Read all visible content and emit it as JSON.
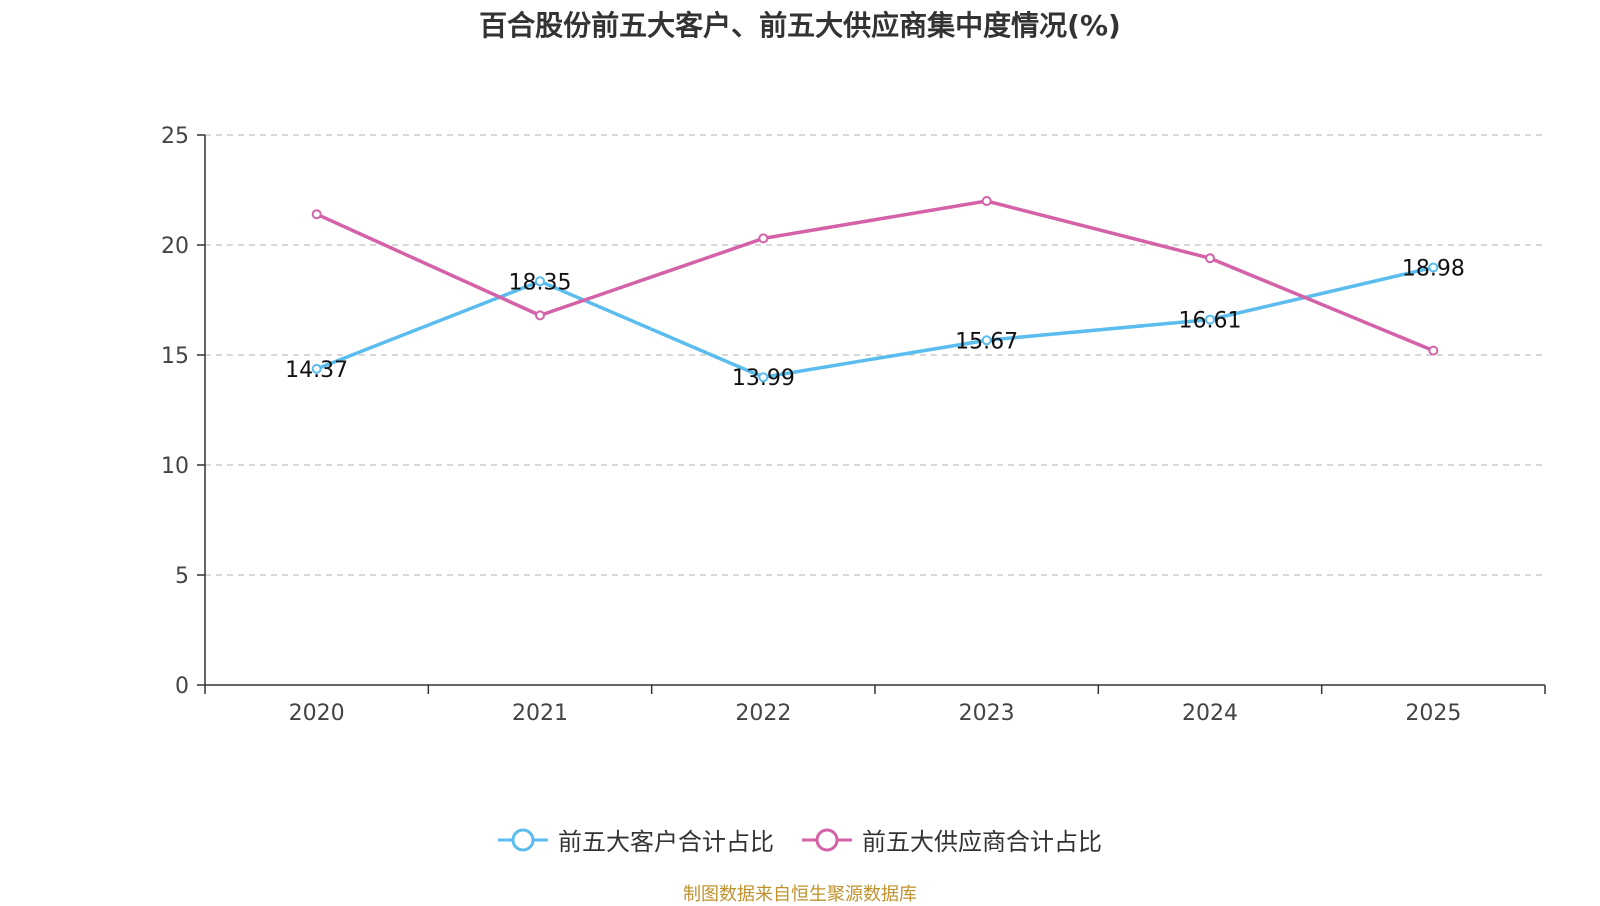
{
  "chart_data": {
    "type": "line",
    "title": "百合股份前五大客户、前五大供应商集中度情况(%)",
    "categories": [
      "2020",
      "2021",
      "2022",
      "2023",
      "2024",
      "2025"
    ],
    "ylim": [
      0,
      25
    ],
    "yticks": [
      "0",
      "5",
      "10",
      "15",
      "20",
      "25"
    ],
    "grid": true,
    "legend_position": "bottom",
    "series": [
      {
        "name": "前五大客户合计占比",
        "color": "#5bbcee",
        "values": [
          14.37,
          18.35,
          13.99,
          15.67,
          16.61,
          18.98
        ],
        "labels": [
          "14.37",
          "18.35",
          "13.99",
          "15.67",
          "16.61",
          "18.98"
        ]
      },
      {
        "name": "前五大供应商合计占比",
        "color": "#d462a8",
        "values": [
          21.4,
          16.8,
          20.3,
          22.0,
          19.4,
          15.2
        ]
      }
    ]
  },
  "footer": {
    "text": "制图数据来自恒生聚源数据库",
    "color": "#c0922e"
  }
}
